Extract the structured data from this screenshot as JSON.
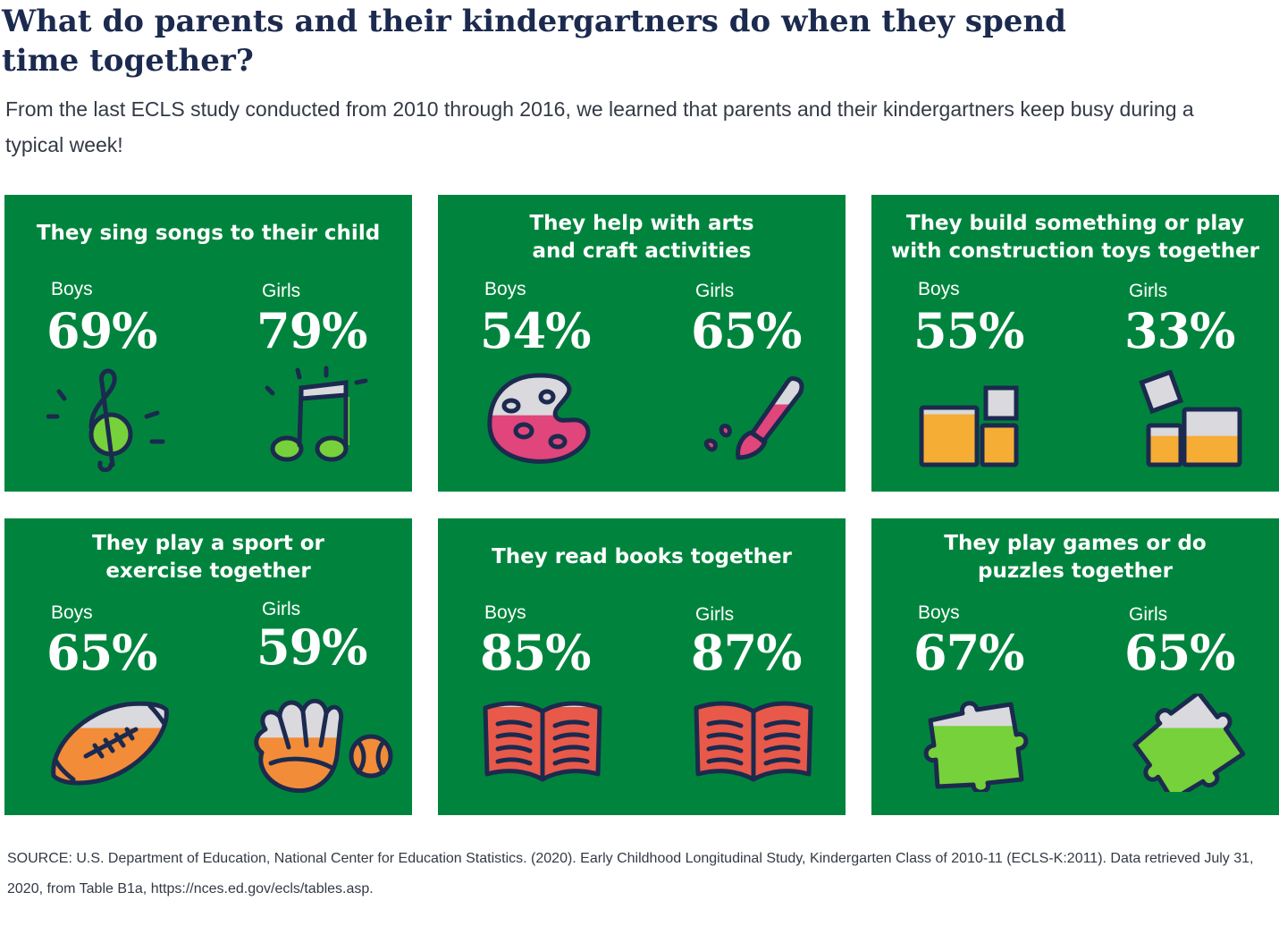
{
  "title": "What do parents and their kindergartners do when they spend time together?",
  "subtitle": "From the last ECLS study conducted from 2010 through 2016, we learned that parents and their kindergartners keep busy during a typical week!",
  "source": "SOURCE: U.S. Department of Education, National Center for Education Statistics. (2020). Early Childhood Longitudinal Study, Kindergarten Class of 2010-11 (ECLS-K:2011). Data retrieved July 31, 2020, from Table B1a, https://nces.ed.gov/ecls/tables.asp.",
  "colors": {
    "panel": "#00843d",
    "navy": "#1b2a4e",
    "gray_fill": "#d9d9de",
    "green_fill": "#76d13a",
    "pink_fill": "#e0457b",
    "orange_fill": "#f6ad35",
    "ball_orange": "#f28c38",
    "book_red": "#e8594a"
  },
  "chart_data": {
    "type": "table",
    "series_names": [
      "Boys",
      "Girls"
    ],
    "activities": [
      {
        "label": "They sing songs to their child",
        "boys": "69%",
        "girls": "79%",
        "boys_value": 69,
        "girls_value": 79,
        "boys_icon": "treble-clef-icon",
        "girls_icon": "music-note-icon"
      },
      {
        "label": "They help with arts and craft activities",
        "boys": "54%",
        "girls": "65%",
        "boys_value": 54,
        "girls_value": 65,
        "boys_icon": "paint-palette-icon",
        "girls_icon": "paintbrush-icon"
      },
      {
        "label": "They build something or play with construction toys together",
        "boys": "55%",
        "girls": "33%",
        "boys_value": 55,
        "girls_value": 33,
        "boys_icon": "blocks-icon",
        "girls_icon": "blocks-icon"
      },
      {
        "label": "They play a sport or exercise together",
        "boys": "65%",
        "girls": "59%",
        "boys_value": 65,
        "girls_value": 59,
        "boys_icon": "football-icon",
        "girls_icon": "baseball-glove-icon"
      },
      {
        "label": "They read books together",
        "boys": "85%",
        "girls": "87%",
        "boys_value": 85,
        "girls_value": 87,
        "boys_icon": "open-book-icon",
        "girls_icon": "open-book-icon"
      },
      {
        "label": "They play games or do puzzles together",
        "boys": "67%",
        "girls": "65%",
        "boys_value": 67,
        "girls_value": 65,
        "boys_icon": "puzzle-piece-icon",
        "girls_icon": "puzzle-piece-icon"
      }
    ]
  }
}
